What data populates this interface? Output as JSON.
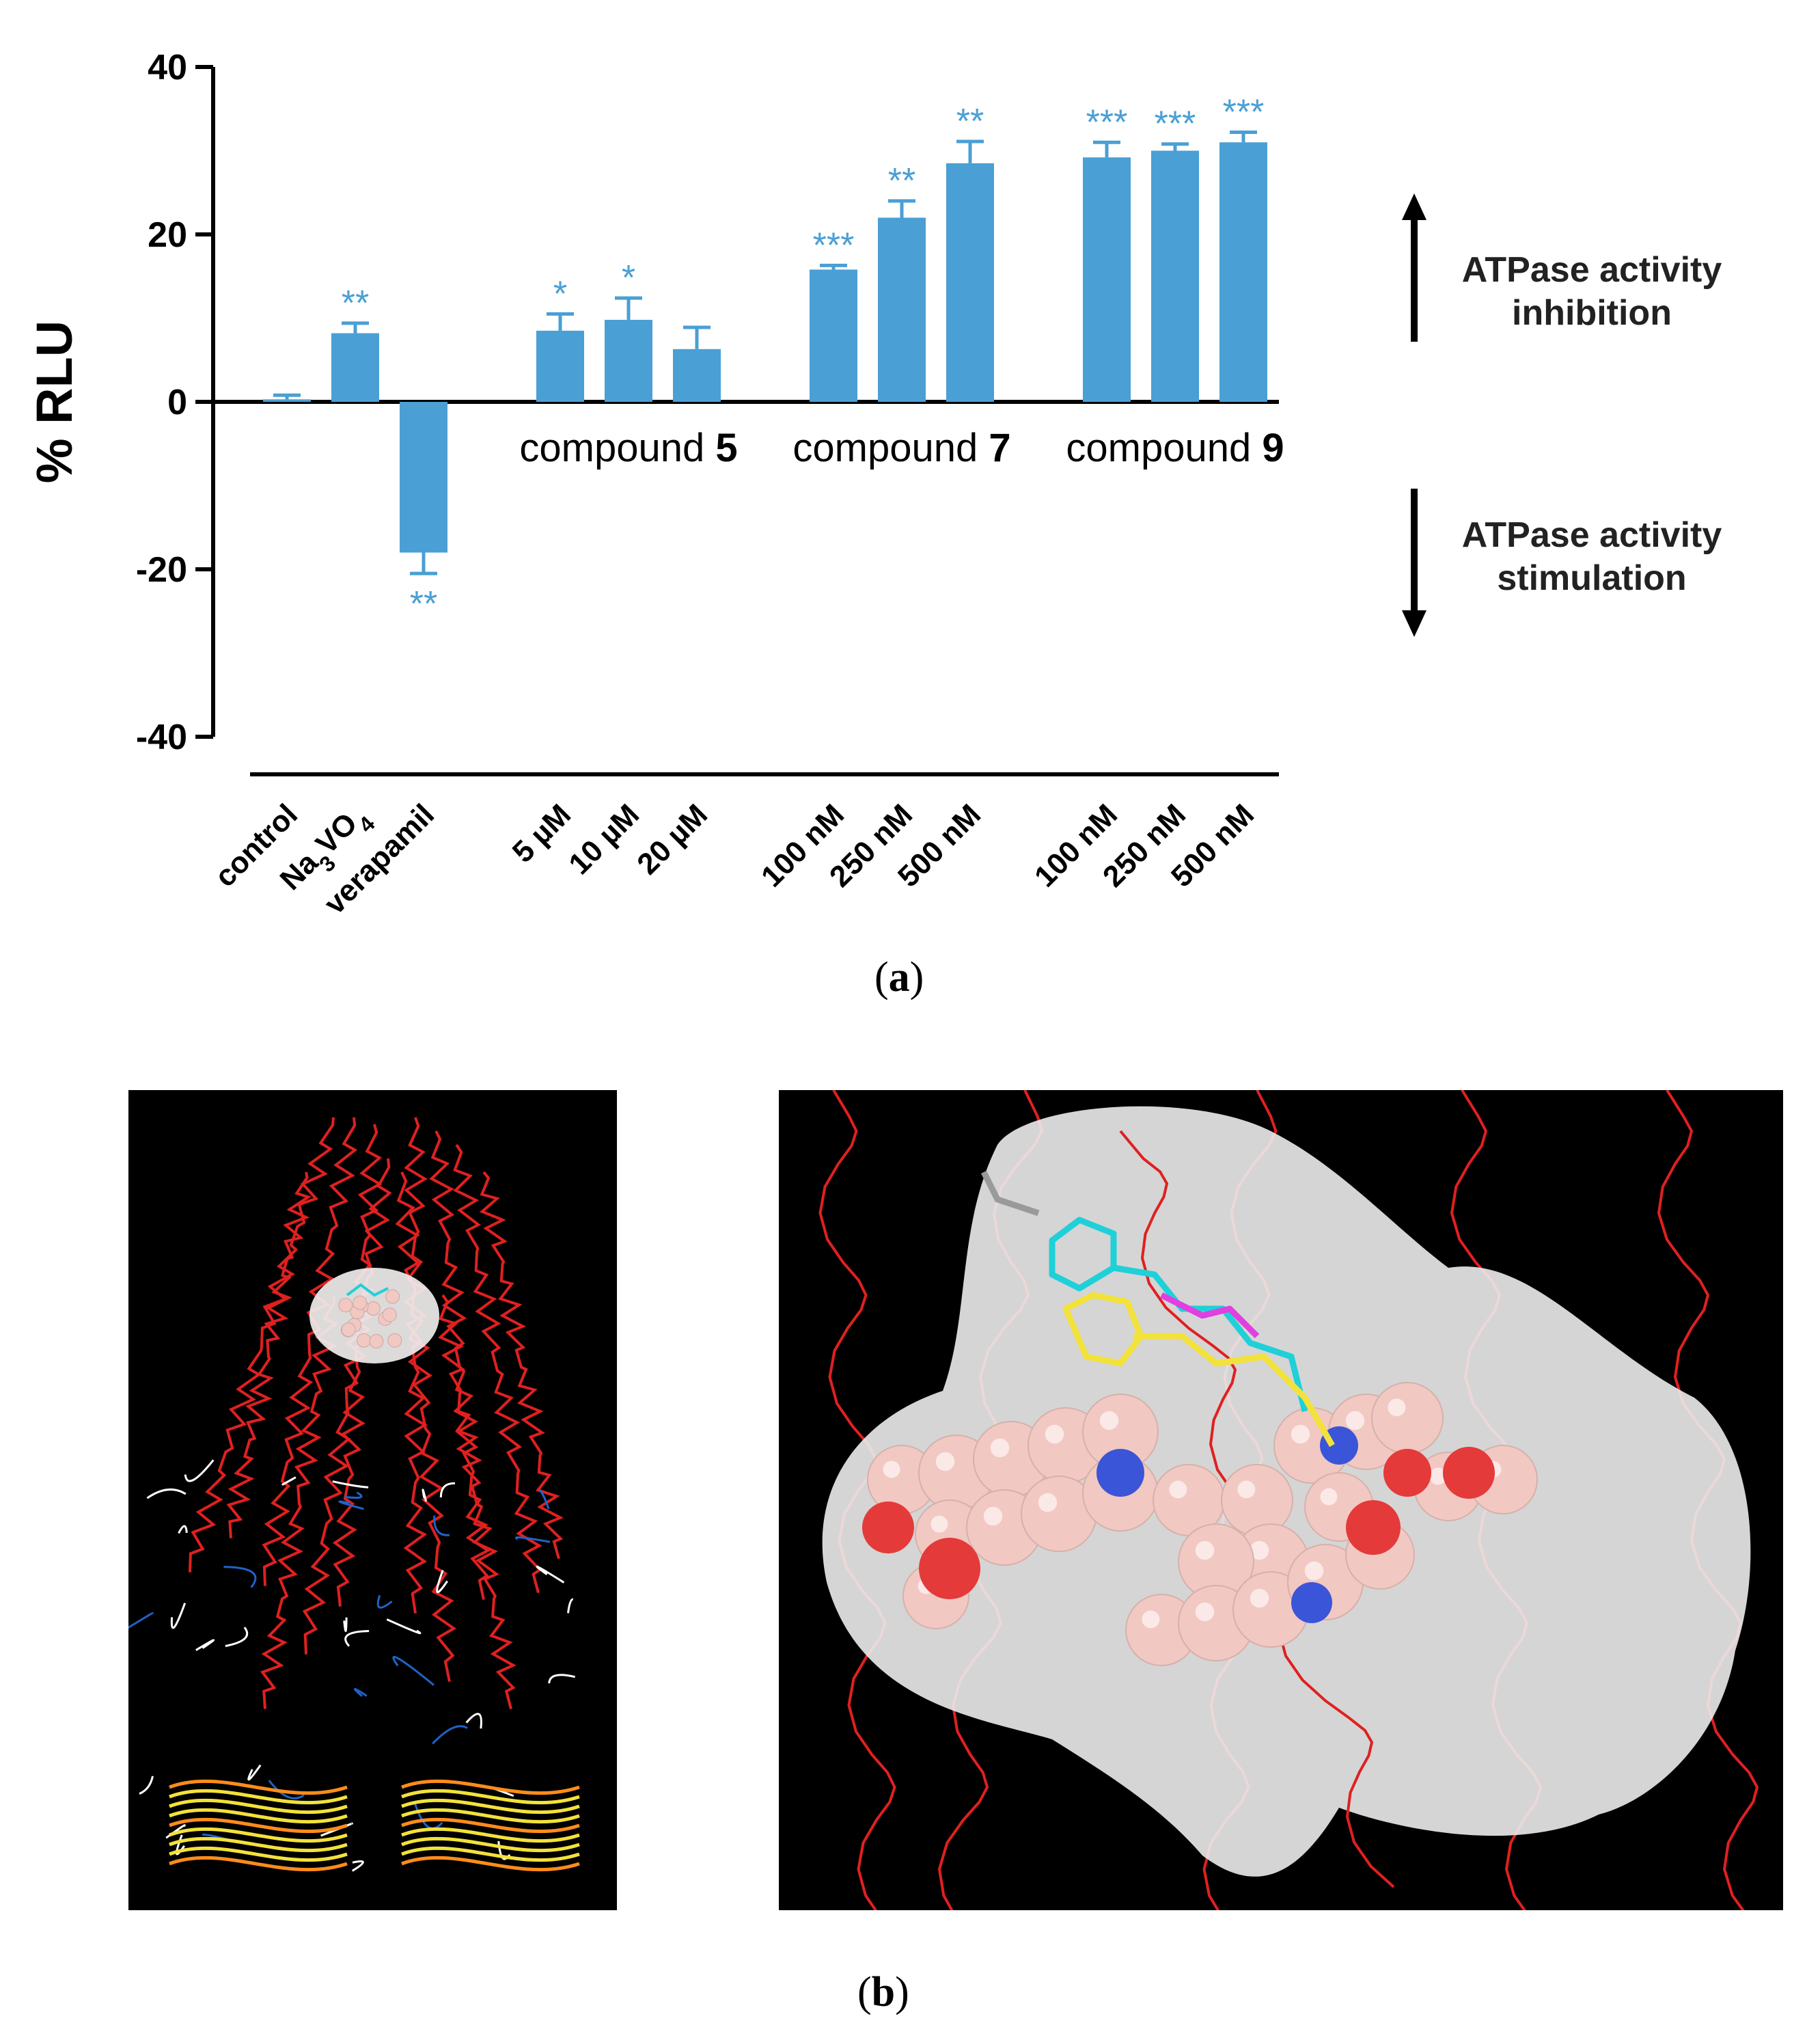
{
  "chart_data": {
    "type": "bar",
    "ylabel": "% RLU",
    "ylim": [
      -40,
      40
    ],
    "yticks": [
      40,
      20,
      0,
      -20,
      -40
    ],
    "bar_color": "#4a9fd4",
    "significance_color": "#4a9fd4",
    "categories": [
      "control",
      "Na3VO4",
      "verapamil",
      "5 µM",
      "10 µM",
      "20 µM",
      "100 nM",
      "250 nM",
      "500 nM",
      "100 nM",
      "250 nM",
      "500 nM"
    ],
    "values": [
      0.3,
      8.2,
      -18.0,
      8.5,
      9.8,
      6.3,
      15.8,
      22.0,
      28.5,
      29.2,
      30.0,
      31.0
    ],
    "errors": [
      0.5,
      1.2,
      2.5,
      2.0,
      2.6,
      2.6,
      0.5,
      2.0,
      2.6,
      1.8,
      0.8,
      1.2
    ],
    "significance": [
      "",
      "**",
      "**",
      "*",
      "*",
      "",
      "***",
      "**",
      "**",
      "***",
      "***",
      "***"
    ],
    "groups": [
      {
        "label_prefix": "compound ",
        "label_number": "5"
      },
      {
        "label_prefix": "compound ",
        "label_number": "7"
      },
      {
        "label_prefix": "compound ",
        "label_number": "9"
      }
    ],
    "annotations": [
      {
        "line1": "ATPase activity",
        "line2": "inhibition",
        "arrow": "up"
      },
      {
        "line1": "ATPase activity",
        "line2": "stimulation",
        "arrow": "down"
      }
    ]
  },
  "panels": {
    "a_label": "a",
    "b_label": "b",
    "protein_ribbon_colors": [
      "#e02020",
      "#ffffff",
      "#1f63c9",
      "#f2e23a",
      "#ff8c1a"
    ],
    "ligand_colors": [
      "#20d0d8",
      "#f2e23a",
      "#e040e0",
      "#f2c8c2",
      "#e43a3a",
      "#3a55d8"
    ]
  }
}
